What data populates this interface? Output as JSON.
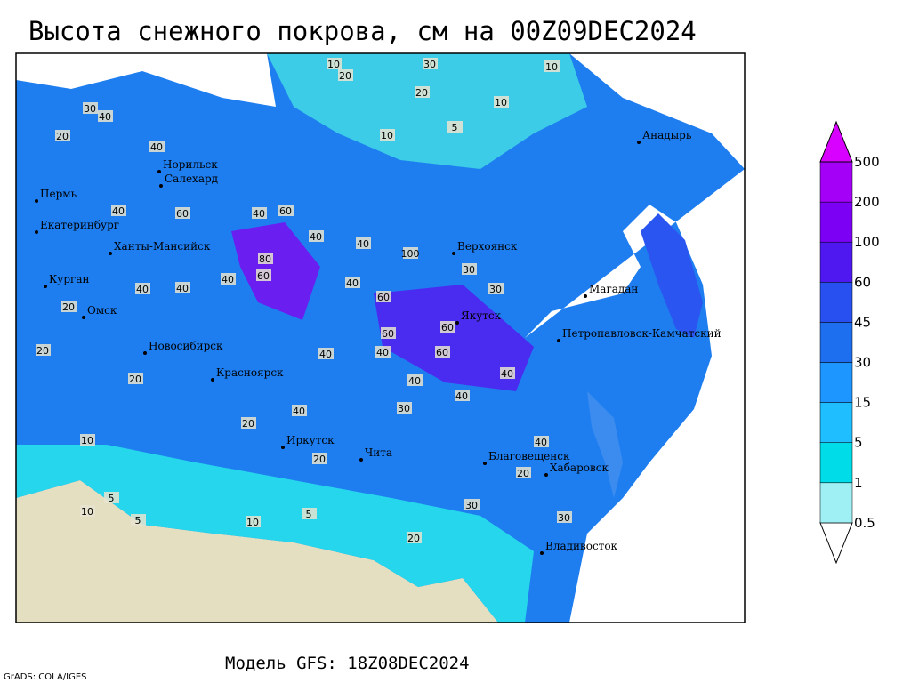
{
  "title": "Высота снежного покрова, см на 00Z09DEC2024",
  "footer": {
    "model": "Модель GFS: 18Z08DEC2024",
    "credit": "GrADS: COLA/IGES"
  },
  "cities": [
    "Норильск",
    "Салехард",
    "Пермь",
    "Екатеринбург",
    "Ханты-Мансийск",
    "Курган",
    "Омск",
    "Новосибирск",
    "Красноярск",
    "Иркутск",
    "Чита",
    "Благовещенск",
    "Хабаровск",
    "Владивосток",
    "Якутск",
    "Верхоянск",
    "Магадан",
    "Петропавловск-Камчатский",
    "Анадырь"
  ],
  "contour_labels": [
    10,
    30,
    10,
    20,
    20,
    10,
    5,
    30,
    40,
    20,
    10,
    40,
    60,
    40,
    60,
    40,
    40,
    100,
    80,
    60,
    40,
    40,
    60,
    40,
    30,
    40,
    30,
    60,
    60,
    60,
    40,
    40,
    40,
    40,
    20,
    20,
    20,
    40,
    20,
    30,
    40,
    40,
    20,
    10,
    5,
    10,
    5,
    10,
    30,
    5,
    20,
    40,
    30,
    20
  ],
  "colorbar": {
    "levels": [
      0.5,
      1,
      5,
      15,
      30,
      45,
      60,
      100,
      200,
      500
    ],
    "colors": [
      "#ffffff",
      "#9ef0f4",
      "#00dce8",
      "#1ebeff",
      "#1e96ff",
      "#1e6ef0",
      "#2850f0",
      "#5018f0",
      "#7c00f4",
      "#a400f8",
      "#d800ff"
    ]
  }
}
